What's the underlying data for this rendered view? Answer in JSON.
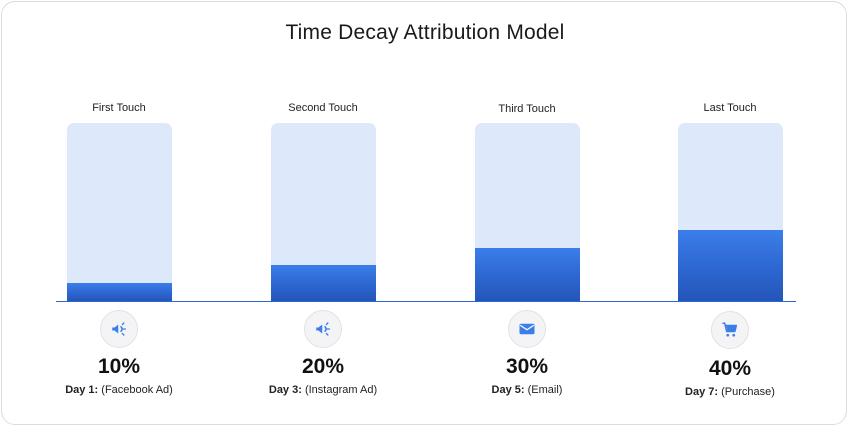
{
  "chart_data": {
    "type": "bar",
    "title": "Time Decay Attribution Model",
    "categories": [
      "First Touch",
      "Second Touch",
      "Third Touch",
      "Last Touch"
    ],
    "values": [
      10,
      20,
      30,
      40
    ],
    "value_labels": [
      "10%",
      "20%",
      "30%",
      "40%"
    ],
    "ylim": [
      0,
      100
    ],
    "touchpoints": [
      {
        "day": "Day 1:",
        "channel": "(Facebook Ad)",
        "icon": "megaphone-icon"
      },
      {
        "day": "Day 3:",
        "channel": "(Instagram Ad)",
        "icon": "megaphone-icon"
      },
      {
        "day": "Day 5:",
        "channel": "(Email)",
        "icon": "email-icon"
      },
      {
        "day": "Day 7:",
        "channel": "(Purchase)",
        "icon": "cart-icon"
      }
    ],
    "grid": false,
    "colors": {
      "fill": "#2d66d0",
      "track": "#dde9fb",
      "icon": "#3b7eea"
    }
  }
}
